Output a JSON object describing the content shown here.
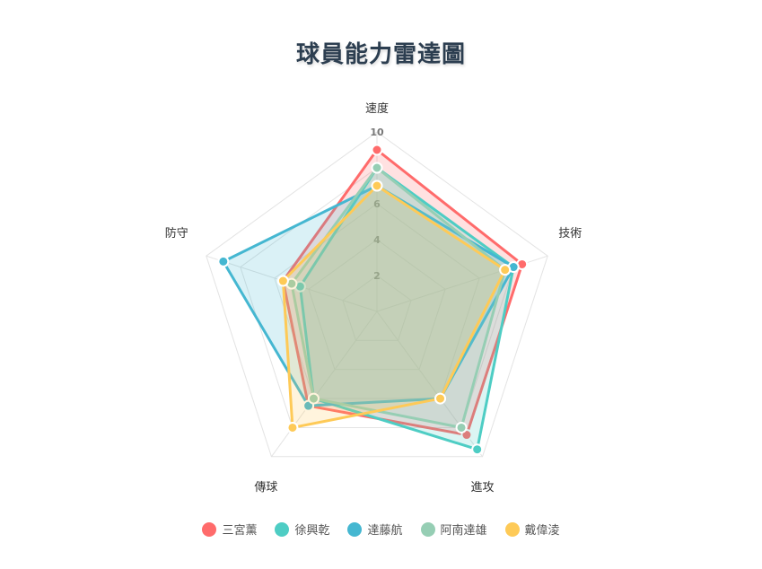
{
  "chart_data": {
    "type": "radar",
    "title": "球員能力雷達圖",
    "axes": [
      "速度",
      "技術",
      "進攻",
      "傳球",
      "防守"
    ],
    "r_range": [
      0,
      10
    ],
    "ticks": [
      "2",
      "4",
      "6",
      "10"
    ],
    "tick_values": [
      2,
      4,
      6,
      10
    ],
    "grid": true,
    "legend_position": "bottom",
    "series": [
      {
        "name": "三宮薰",
        "values": [
          9,
          8.5,
          8.5,
          6.5,
          5.5
        ],
        "color": "#ff6b6b"
      },
      {
        "name": "徐興乾",
        "values": [
          8,
          8,
          9.5,
          6,
          4.5
        ],
        "color": "#4ecdc4"
      },
      {
        "name": "達藤航",
        "values": [
          7,
          8,
          6,
          6.5,
          9
        ],
        "color": "#45b7d1"
      },
      {
        "name": "阿南達雄",
        "values": [
          8,
          7.5,
          8,
          6,
          5
        ],
        "color": "#96ceb4"
      },
      {
        "name": "戴偉淩",
        "values": [
          7,
          7.5,
          6,
          8,
          5.5
        ],
        "color": "#feca57"
      }
    ]
  }
}
